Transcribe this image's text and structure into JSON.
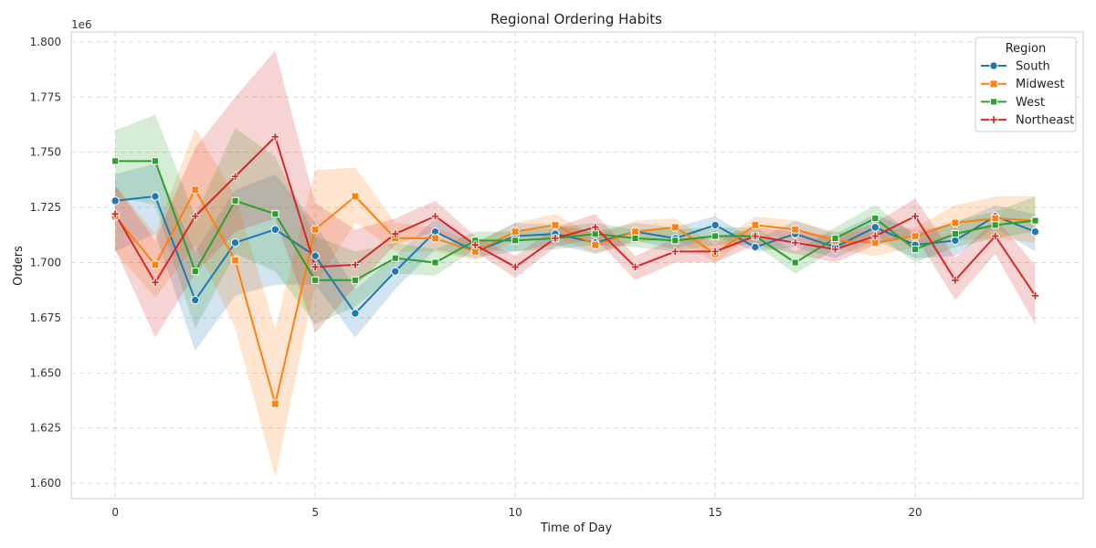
{
  "chart_data": {
    "type": "line",
    "title": "Regional Ordering Habits",
    "xlabel": "Time of Day",
    "ylabel": "Orders",
    "y_offset_label": "1e6",
    "xlim": [
      -1.1,
      24.2
    ],
    "ylim": [
      1.593,
      1.8045
    ],
    "x_ticks": [
      0,
      5,
      10,
      15,
      20
    ],
    "x_tick_labels": [
      "0",
      "5",
      "10",
      "15",
      "20"
    ],
    "y_ticks": [
      1.6,
      1.625,
      1.65,
      1.675,
      1.7,
      1.725,
      1.75,
      1.775,
      1.8
    ],
    "y_tick_labels": [
      "1.600",
      "1.625",
      "1.650",
      "1.675",
      "1.700",
      "1.725",
      "1.750",
      "1.775",
      "1.800"
    ],
    "grid": true,
    "legend": {
      "title": "Region",
      "placement": "top-right"
    },
    "x": [
      0,
      1,
      2,
      3,
      4,
      5,
      6,
      7,
      8,
      9,
      10,
      11,
      12,
      13,
      14,
      15,
      16,
      17,
      18,
      19,
      20,
      21,
      22,
      23
    ],
    "series": [
      {
        "name": "South",
        "color": "#1f77b4",
        "marker": "circle",
        "values": [
          1.728,
          1.73,
          1.683,
          1.709,
          1.715,
          1.703,
          1.677,
          1.696,
          1.714,
          1.705,
          1.712,
          1.713,
          1.709,
          1.714,
          1.711,
          1.717,
          1.707,
          1.713,
          1.707,
          1.716,
          1.708,
          1.71,
          1.721,
          1.714
        ],
        "lower": [
          1.705,
          1.713,
          1.66,
          1.685,
          1.69,
          1.69,
          1.666,
          1.688,
          1.706,
          1.702,
          1.705,
          1.708,
          1.704,
          1.71,
          1.706,
          1.712,
          1.705,
          1.707,
          1.702,
          1.71,
          1.702,
          1.703,
          1.716,
          1.705
        ],
        "upper": [
          1.74,
          1.745,
          1.705,
          1.733,
          1.74,
          1.718,
          1.688,
          1.703,
          1.72,
          1.709,
          1.718,
          1.717,
          1.714,
          1.718,
          1.716,
          1.721,
          1.71,
          1.719,
          1.713,
          1.722,
          1.714,
          1.718,
          1.726,
          1.722
        ]
      },
      {
        "name": "Midwest",
        "color": "#ff7f0e",
        "marker": "x",
        "values": [
          1.721,
          1.699,
          1.733,
          1.701,
          1.636,
          1.715,
          1.73,
          1.711,
          1.711,
          1.705,
          1.714,
          1.717,
          1.708,
          1.714,
          1.716,
          1.704,
          1.717,
          1.715,
          1.71,
          1.709,
          1.712,
          1.718,
          1.72,
          1.719
        ],
        "lower": [
          1.705,
          1.684,
          1.708,
          1.67,
          1.603,
          1.69,
          1.718,
          1.705,
          1.705,
          1.701,
          1.71,
          1.712,
          1.704,
          1.709,
          1.711,
          1.7,
          1.713,
          1.71,
          1.706,
          1.703,
          1.707,
          1.71,
          1.711,
          1.709
        ],
        "upper": [
          1.735,
          1.713,
          1.761,
          1.73,
          1.67,
          1.742,
          1.743,
          1.718,
          1.716,
          1.709,
          1.718,
          1.722,
          1.712,
          1.719,
          1.72,
          1.708,
          1.721,
          1.719,
          1.714,
          1.714,
          1.716,
          1.726,
          1.73,
          1.73
        ]
      },
      {
        "name": "West",
        "color": "#2ca02c",
        "marker": "square",
        "values": [
          1.746,
          1.746,
          1.696,
          1.728,
          1.722,
          1.692,
          1.692,
          1.702,
          1.7,
          1.71,
          1.71,
          1.711,
          1.713,
          1.711,
          1.71,
          1.712,
          1.712,
          1.7,
          1.711,
          1.72,
          1.706,
          1.713,
          1.717,
          1.719
        ],
        "lower": [
          1.73,
          1.726,
          1.67,
          1.704,
          1.696,
          1.672,
          1.68,
          1.695,
          1.694,
          1.706,
          1.705,
          1.706,
          1.708,
          1.707,
          1.705,
          1.708,
          1.708,
          1.695,
          1.706,
          1.713,
          1.7,
          1.707,
          1.711,
          1.714
        ],
        "upper": [
          1.76,
          1.767,
          1.721,
          1.761,
          1.748,
          1.712,
          1.705,
          1.709,
          1.706,
          1.714,
          1.714,
          1.716,
          1.718,
          1.715,
          1.715,
          1.716,
          1.716,
          1.705,
          1.716,
          1.726,
          1.712,
          1.719,
          1.723,
          1.73
        ]
      },
      {
        "name": "Northeast",
        "color": "#d62728",
        "marker": "plus",
        "values": [
          1.722,
          1.691,
          1.721,
          1.739,
          1.757,
          1.698,
          1.699,
          1.713,
          1.721,
          1.708,
          1.698,
          1.711,
          1.716,
          1.698,
          1.705,
          1.705,
          1.712,
          1.709,
          1.706,
          1.712,
          1.721,
          1.692,
          1.712,
          1.685
        ],
        "lower": [
          1.706,
          1.666,
          1.695,
          1.714,
          1.72,
          1.668,
          1.689,
          1.708,
          1.714,
          1.705,
          1.693,
          1.707,
          1.711,
          1.692,
          1.7,
          1.7,
          1.708,
          1.704,
          1.7,
          1.708,
          1.712,
          1.683,
          1.704,
          1.672
        ],
        "upper": [
          1.735,
          1.71,
          1.752,
          1.775,
          1.796,
          1.727,
          1.715,
          1.72,
          1.728,
          1.712,
          1.703,
          1.716,
          1.722,
          1.703,
          1.711,
          1.711,
          1.716,
          1.714,
          1.712,
          1.718,
          1.729,
          1.702,
          1.72,
          1.699
        ]
      }
    ]
  }
}
